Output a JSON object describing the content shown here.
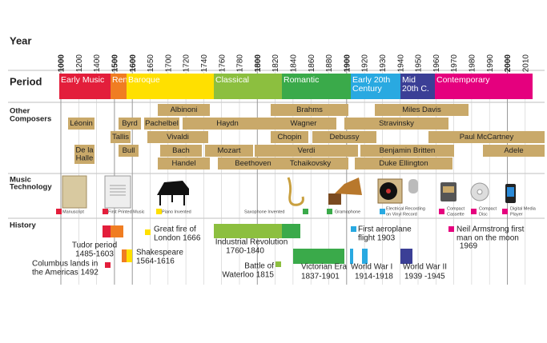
{
  "row_labels": {
    "year": "Year",
    "period": "Period",
    "composers": [
      "Other",
      "Composers"
    ],
    "technology": [
      "Music",
      "Technology"
    ],
    "history": "History"
  },
  "years": [
    1000,
    1200,
    1400,
    1500,
    1600,
    1650,
    1700,
    1720,
    1740,
    1760,
    1780,
    1800,
    1820,
    1840,
    1860,
    1880,
    1900,
    1920,
    1930,
    1940,
    1950,
    1960,
    1970,
    1980,
    1990,
    2000,
    2010
  ],
  "periods": [
    {
      "label": [
        "Early Music"
      ],
      "color": "#e31e3b"
    },
    {
      "label": [
        "Ren."
      ],
      "color": "#f07d22"
    },
    {
      "label": [
        "Baroque"
      ],
      "color": "#ffe000"
    },
    {
      "label": [
        "Classical"
      ],
      "color": "#8cbf3f"
    },
    {
      "label": [
        "Romantic"
      ],
      "color": "#3aaa4a"
    },
    {
      "label": [
        "Early 20th",
        "Century"
      ],
      "color": "#29a9e1"
    },
    {
      "label": [
        "Mid",
        "20th C."
      ],
      "color": "#3b3f96"
    },
    {
      "label": [
        "Contemporary"
      ],
      "color": "#e5007e"
    }
  ],
  "composers": [
    [
      "Albinoni"
    ],
    [
      "Brahms"
    ],
    [
      "Miles Davis"
    ],
    [
      "Léonin"
    ],
    [
      "Byrd"
    ],
    [
      "Pachelbel"
    ],
    [
      "Haydn"
    ],
    [
      "Wagner"
    ],
    [
      "Stravinsky"
    ],
    [
      "Tallis"
    ],
    [
      "Vivaldi"
    ],
    [
      "Chopin"
    ],
    [
      "Debussy"
    ],
    [
      "Paul McCartney"
    ],
    [
      "De la",
      "Halle"
    ],
    [
      "Bull"
    ],
    [
      "Bach"
    ],
    [
      "Mozart"
    ],
    [
      "Verdi"
    ],
    [
      "Benjamin Britten"
    ],
    [
      "Adele"
    ],
    [
      "Handel"
    ],
    [
      "Beethoven"
    ],
    [
      "Tchaikovsky"
    ],
    [
      "Duke Ellington"
    ]
  ],
  "technology": [
    {
      "lines": [
        "Manuscript"
      ],
      "color": "#e31e3b"
    },
    {
      "lines": [
        "First Printed Music"
      ],
      "color": "#e31e3b"
    },
    {
      "lines": [
        "Piano Invented"
      ],
      "color": "#ffe000"
    },
    {
      "lines": [
        "Saxophone Invented"
      ],
      "color": "#3aaa4a"
    },
    {
      "lines": [
        "Gramophone"
      ],
      "color": "#3aaa4a"
    },
    {
      "lines": [
        "Electrical Recording",
        "on Vinyl Record"
      ],
      "color": "#29a9e1"
    },
    {
      "lines": [
        "Compact",
        "Cassette"
      ],
      "color": "#e5007e"
    },
    {
      "lines": [
        "Compact",
        "Disc"
      ],
      "color": "#e5007e"
    },
    {
      "lines": [
        "Digital Media",
        "Player"
      ],
      "color": "#e5007e"
    }
  ],
  "history": [
    [
      "Tudor period",
      "1485-1603"
    ],
    [
      "Columbus lands in",
      "the Americas 1492"
    ],
    [
      "Great fire of",
      "London 1666"
    ],
    [
      "Shakespeare",
      "1564-1616"
    ],
    [
      "Industrial Revolution",
      "1760-1840"
    ],
    [
      "Battle of",
      "Waterloo 1815"
    ],
    [
      "First aeroplane",
      "flight 1903"
    ],
    [
      "Neil Armstrong first",
      "man on the moon",
      "1969"
    ],
    [
      "Victorian Era",
      "1837-1901"
    ],
    [
      "World War I",
      "1914-1918"
    ],
    [
      "World War II",
      "1939 -1945"
    ]
  ]
}
